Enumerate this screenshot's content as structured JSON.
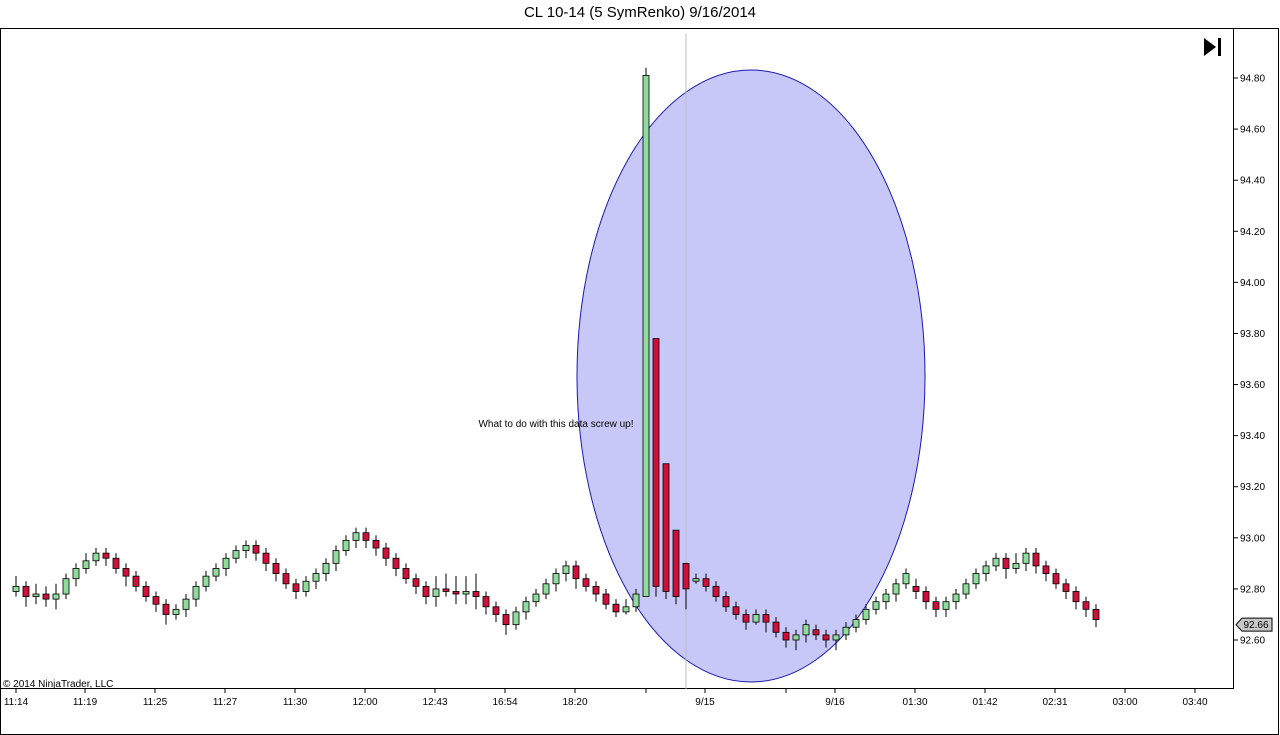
{
  "header": {
    "title": "CL 10-14 (5 SymRenko)  9/16/2014"
  },
  "copyright": "© 2014 NinjaTrader, LLC",
  "annotation": "What to do with this data screw up!",
  "toolbar": {
    "scroll_end_icon": "skip-to-end-icon"
  },
  "colors": {
    "up": "#8fdc9c",
    "down": "#d0103a",
    "ellipse_fill": "#c8c8f8",
    "ellipse_stroke": "#1a1ab0",
    "axis": "#000000"
  },
  "chart_data": {
    "type": "candlestick",
    "title": "CL 10-14 (5 SymRenko)  9/16/2014",
    "ylim": [
      92.48,
      94.96
    ],
    "y_ticks": [
      "94.80",
      "94.60",
      "94.40",
      "94.20",
      "94.00",
      "93.80",
      "93.60",
      "93.40",
      "93.20",
      "93.00",
      "92.80",
      "92.60"
    ],
    "x_ticks": [
      "11:14",
      "11:19",
      "11:25",
      "11:27",
      "11:30",
      "12:00",
      "12:43",
      "16:54",
      "18:20",
      "9/15",
      "9/16",
      "01:30",
      "01:42",
      "02:31",
      "03:00",
      "03:40"
    ],
    "last_price": "92.66",
    "bars": [
      [
        92.79,
        92.81,
        92.77,
        92.85
      ],
      [
        92.81,
        92.77,
        92.73,
        92.83
      ],
      [
        92.77,
        92.78,
        92.74,
        92.82
      ],
      [
        92.78,
        92.76,
        92.73,
        92.81
      ],
      [
        92.76,
        92.78,
        92.72,
        92.82
      ],
      [
        92.78,
        92.84,
        92.76,
        92.86
      ],
      [
        92.84,
        92.88,
        92.81,
        92.9
      ],
      [
        92.88,
        92.91,
        92.86,
        92.94
      ],
      [
        92.91,
        92.94,
        92.89,
        92.96
      ],
      [
        92.94,
        92.92,
        92.89,
        92.96
      ],
      [
        92.92,
        92.88,
        92.86,
        92.94
      ],
      [
        92.88,
        92.85,
        92.81,
        92.9
      ],
      [
        92.85,
        92.81,
        92.79,
        92.87
      ],
      [
        92.81,
        92.77,
        92.75,
        92.83
      ],
      [
        92.77,
        92.74,
        92.71,
        92.79
      ],
      [
        92.74,
        92.7,
        92.66,
        92.76
      ],
      [
        92.7,
        92.72,
        92.68,
        92.74
      ],
      [
        92.72,
        92.76,
        92.69,
        92.78
      ],
      [
        92.76,
        92.81,
        92.73,
        92.83
      ],
      [
        92.81,
        92.85,
        92.79,
        92.87
      ],
      [
        92.85,
        92.88,
        92.83,
        92.9
      ],
      [
        92.88,
        92.92,
        92.85,
        92.94
      ],
      [
        92.92,
        92.95,
        92.9,
        92.97
      ],
      [
        92.95,
        92.97,
        92.92,
        92.99
      ],
      [
        92.97,
        92.94,
        92.91,
        92.99
      ],
      [
        92.94,
        92.9,
        92.87,
        92.96
      ],
      [
        92.9,
        92.86,
        92.83,
        92.92
      ],
      [
        92.86,
        92.82,
        92.8,
        92.88
      ],
      [
        92.82,
        92.79,
        92.76,
        92.84
      ],
      [
        92.79,
        92.83,
        92.77,
        92.85
      ],
      [
        92.83,
        92.86,
        92.8,
        92.88
      ],
      [
        92.86,
        92.9,
        92.83,
        92.92
      ],
      [
        92.9,
        92.95,
        92.87,
        92.97
      ],
      [
        92.95,
        92.99,
        92.93,
        93.01
      ],
      [
        92.99,
        93.02,
        92.96,
        93.04
      ],
      [
        93.02,
        92.99,
        92.96,
        93.04
      ],
      [
        92.99,
        92.96,
        92.93,
        93.01
      ],
      [
        92.96,
        92.92,
        92.89,
        92.98
      ],
      [
        92.92,
        92.88,
        92.85,
        92.94
      ],
      [
        92.88,
        92.84,
        92.82,
        92.9
      ],
      [
        92.84,
        92.81,
        92.78,
        92.86
      ],
      [
        92.81,
        92.77,
        92.74,
        92.83
      ],
      [
        92.77,
        92.8,
        92.73,
        92.85
      ],
      [
        92.8,
        92.79,
        92.77,
        92.86
      ],
      [
        92.79,
        92.78,
        92.74,
        92.85
      ],
      [
        92.78,
        92.79,
        92.74,
        92.85
      ],
      [
        92.79,
        92.77,
        92.72,
        92.86
      ],
      [
        92.77,
        92.73,
        92.7,
        92.79
      ],
      [
        92.73,
        92.7,
        92.67,
        92.75
      ],
      [
        92.7,
        92.66,
        92.62,
        92.72
      ],
      [
        92.66,
        92.71,
        92.64,
        92.73
      ],
      [
        92.71,
        92.75,
        92.68,
        92.77
      ],
      [
        92.75,
        92.78,
        92.73,
        92.8
      ],
      [
        92.78,
        92.82,
        92.76,
        92.84
      ],
      [
        92.82,
        92.86,
        92.79,
        92.88
      ],
      [
        92.86,
        92.89,
        92.83,
        92.91
      ],
      [
        92.89,
        92.84,
        92.8,
        92.91
      ],
      [
        92.84,
        92.81,
        92.79,
        92.86
      ],
      [
        92.81,
        92.78,
        92.75,
        92.83
      ],
      [
        92.78,
        92.74,
        92.72,
        92.8
      ],
      [
        92.74,
        92.71,
        92.69,
        92.76
      ],
      [
        92.71,
        92.73,
        92.7,
        92.76
      ],
      [
        92.73,
        92.78,
        92.71,
        92.8
      ],
      [
        92.77,
        94.81,
        92.77,
        94.84
      ],
      [
        93.78,
        92.81,
        92.77,
        93.78
      ],
      [
        93.29,
        92.79,
        92.76,
        93.29
      ],
      [
        93.03,
        92.77,
        92.74,
        93.03
      ],
      [
        92.9,
        92.8,
        92.72,
        92.9
      ],
      [
        92.83,
        92.84,
        92.82,
        92.86
      ],
      [
        92.84,
        92.81,
        92.79,
        92.86
      ],
      [
        92.81,
        92.77,
        92.75,
        92.83
      ],
      [
        92.77,
        92.73,
        92.71,
        92.79
      ],
      [
        92.73,
        92.7,
        92.68,
        92.75
      ],
      [
        92.7,
        92.67,
        92.64,
        92.72
      ],
      [
        92.67,
        92.7,
        92.66,
        92.72
      ],
      [
        92.7,
        92.67,
        92.63,
        92.72
      ],
      [
        92.67,
        92.63,
        92.61,
        92.69
      ],
      [
        92.63,
        92.6,
        92.57,
        92.65
      ],
      [
        92.6,
        92.62,
        92.56,
        92.64
      ],
      [
        92.62,
        92.66,
        92.59,
        92.68
      ],
      [
        92.64,
        92.62,
        92.6,
        92.66
      ],
      [
        92.62,
        92.6,
        92.57,
        92.64
      ],
      [
        92.6,
        92.62,
        92.56,
        92.64
      ],
      [
        92.62,
        92.65,
        92.6,
        92.67
      ],
      [
        92.65,
        92.68,
        92.63,
        92.7
      ],
      [
        92.68,
        92.72,
        92.66,
        92.74
      ],
      [
        92.72,
        92.75,
        92.7,
        92.77
      ],
      [
        92.75,
        92.78,
        92.72,
        92.8
      ],
      [
        92.78,
        92.82,
        92.75,
        92.84
      ],
      [
        92.82,
        92.86,
        92.8,
        92.88
      ],
      [
        92.81,
        92.79,
        92.76,
        92.84
      ],
      [
        92.79,
        92.75,
        92.72,
        92.81
      ],
      [
        92.75,
        92.72,
        92.69,
        92.77
      ],
      [
        92.72,
        92.75,
        92.69,
        92.77
      ],
      [
        92.75,
        92.78,
        92.72,
        92.8
      ],
      [
        92.78,
        92.82,
        92.76,
        92.84
      ],
      [
        92.82,
        92.86,
        92.8,
        92.88
      ],
      [
        92.86,
        92.89,
        92.83,
        92.91
      ],
      [
        92.89,
        92.92,
        92.87,
        92.94
      ],
      [
        92.92,
        92.88,
        92.84,
        92.94
      ],
      [
        92.88,
        92.9,
        92.86,
        92.94
      ],
      [
        92.9,
        92.94,
        92.87,
        92.96
      ],
      [
        92.94,
        92.89,
        92.86,
        92.96
      ],
      [
        92.89,
        92.86,
        92.83,
        92.91
      ],
      [
        92.86,
        92.82,
        92.8,
        92.88
      ],
      [
        92.82,
        92.79,
        92.76,
        92.84
      ],
      [
        92.79,
        92.75,
        92.72,
        92.81
      ],
      [
        92.75,
        92.72,
        92.69,
        92.77
      ],
      [
        92.72,
        92.68,
        92.65,
        92.74
      ]
    ]
  }
}
